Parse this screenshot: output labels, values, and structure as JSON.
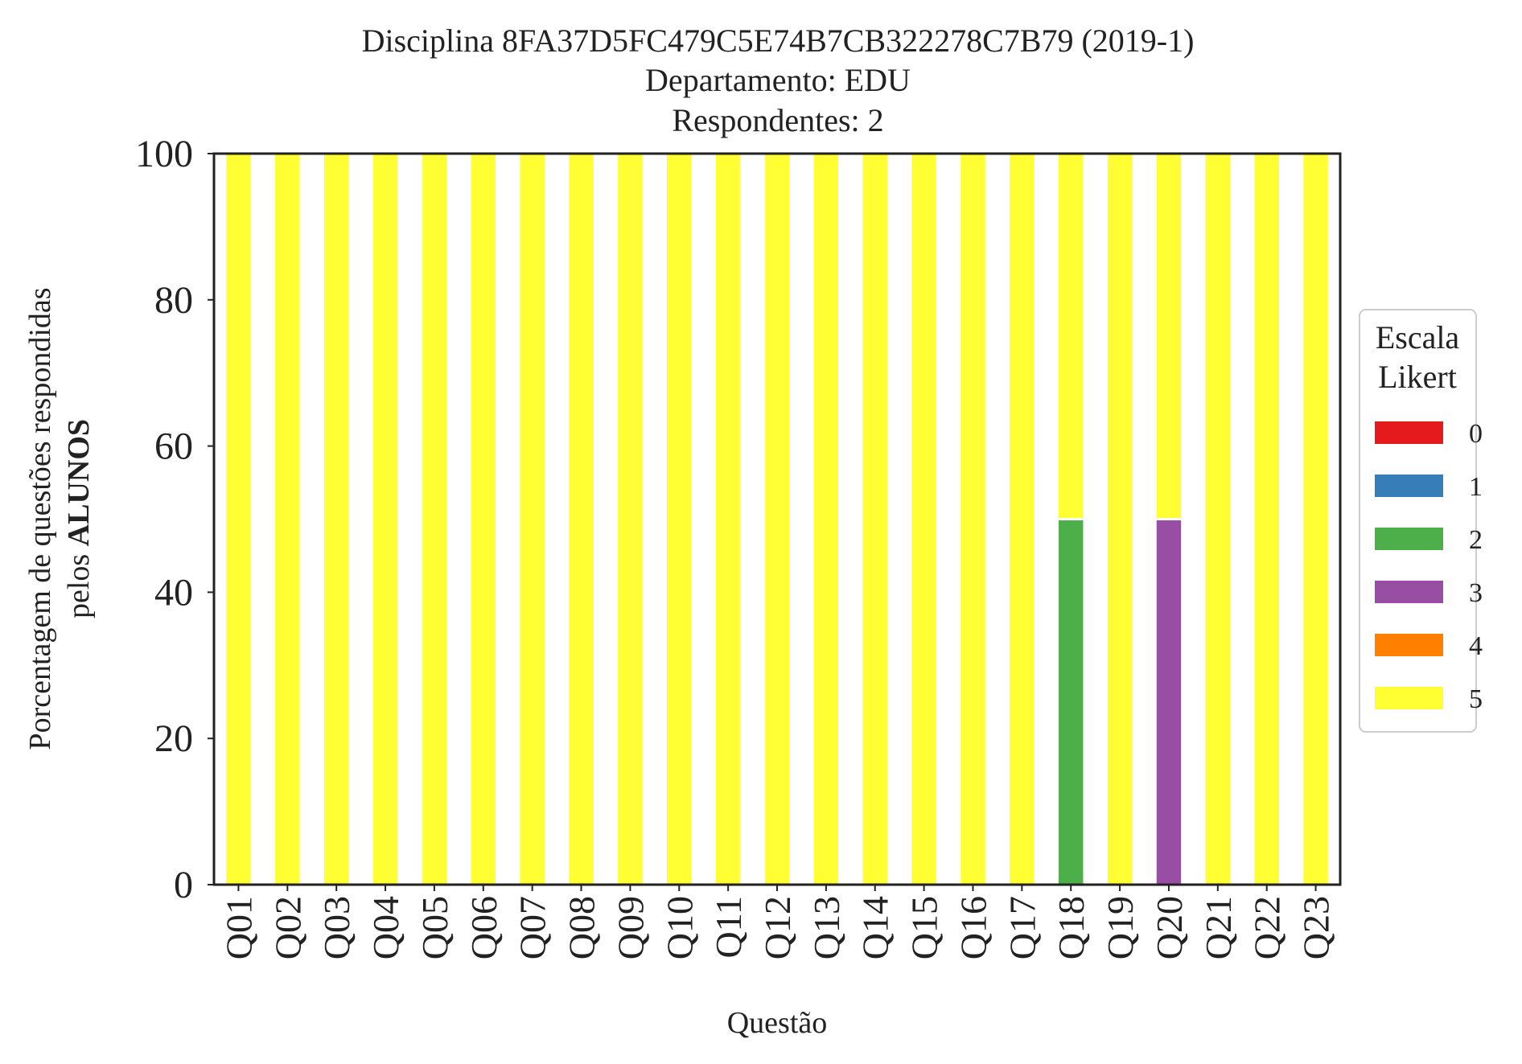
{
  "chart_data": {
    "type": "bar",
    "stacked": true,
    "title_lines": [
      "Disciplina 8FA37D5FC479C5E74B7CB322278C7B79 (2019-1)",
      "Departamento: EDU",
      "Respondentes: 2"
    ],
    "xlabel": "Questão",
    "ylabel_line1": "Porcentagem de questões respondidas",
    "ylabel_line2_prefix": "pelos ",
    "ylabel_line2_bold": "ALUNOS",
    "ylim": [
      0,
      100
    ],
    "yticks": [
      "0",
      "20",
      "40",
      "60",
      "80",
      "100"
    ],
    "grid": false,
    "legend_position": "right",
    "legend_title_lines": [
      "Escala",
      "Likert"
    ],
    "categories": [
      "Q01",
      "Q02",
      "Q03",
      "Q04",
      "Q05",
      "Q06",
      "Q07",
      "Q08",
      "Q09",
      "Q10",
      "Q11",
      "Q12",
      "Q13",
      "Q14",
      "Q15",
      "Q16",
      "Q17",
      "Q18",
      "Q19",
      "Q20",
      "Q21",
      "Q22",
      "Q23"
    ],
    "series": [
      {
        "name": "0",
        "color": "#e41a1c",
        "values": [
          0,
          0,
          0,
          0,
          0,
          0,
          0,
          0,
          0,
          0,
          0,
          0,
          0,
          0,
          0,
          0,
          0,
          0,
          0,
          0,
          0,
          0,
          0
        ]
      },
      {
        "name": "1",
        "color": "#377eb8",
        "values": [
          0,
          0,
          0,
          0,
          0,
          0,
          0,
          0,
          0,
          0,
          0,
          0,
          0,
          0,
          0,
          0,
          0,
          0,
          0,
          0,
          0,
          0,
          0
        ]
      },
      {
        "name": "2",
        "color": "#4daf4a",
        "values": [
          0,
          0,
          0,
          0,
          0,
          0,
          0,
          0,
          0,
          0,
          0,
          0,
          0,
          0,
          0,
          0,
          0,
          50,
          0,
          0,
          0,
          0,
          0
        ]
      },
      {
        "name": "3",
        "color": "#984ea3",
        "values": [
          0,
          0,
          0,
          0,
          0,
          0,
          0,
          0,
          0,
          0,
          0,
          0,
          0,
          0,
          0,
          0,
          0,
          0,
          0,
          50,
          0,
          0,
          0
        ]
      },
      {
        "name": "4",
        "color": "#ff7f00",
        "values": [
          0,
          0,
          0,
          0,
          0,
          0,
          0,
          0,
          0,
          0,
          0,
          0,
          0,
          0,
          0,
          0,
          0,
          0,
          0,
          0,
          0,
          0,
          0
        ]
      },
      {
        "name": "5",
        "color": "#ffff33",
        "values": [
          100,
          100,
          100,
          100,
          100,
          100,
          100,
          100,
          100,
          100,
          100,
          100,
          100,
          100,
          100,
          100,
          100,
          50,
          100,
          50,
          100,
          100,
          100
        ]
      }
    ]
  }
}
